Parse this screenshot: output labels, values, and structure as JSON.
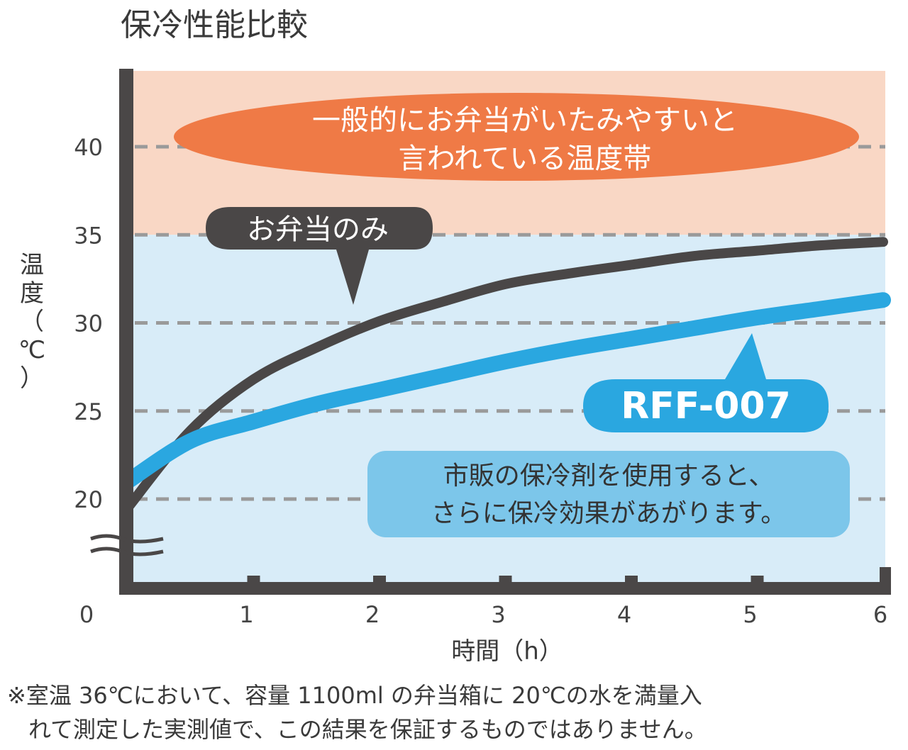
{
  "chart_data": {
    "type": "line",
    "title": "保冷性能比較",
    "xlabel": "時間（h）",
    "ylabel": "温度（℃）",
    "ylabel_chars": [
      "温",
      "度",
      "（",
      "℃",
      "）"
    ],
    "x_origin_label": "0",
    "x_ticks": [
      1,
      2,
      3,
      4,
      5,
      6
    ],
    "y_ticks": [
      20,
      25,
      30,
      35,
      40
    ],
    "xlim": [
      0,
      6
    ],
    "ylim": [
      16.5,
      44
    ],
    "grid": "dashed horizontal at y ticks",
    "danger_zone": {
      "from": 35,
      "to": 44,
      "color": "#f9d7c5",
      "label_lines": [
        "一般的にお弁当がいたみやすいと",
        "言われている温度帯"
      ]
    },
    "safe_zone": {
      "from": 16.5,
      "to": 35,
      "color": "#d8ecf8"
    },
    "series": [
      {
        "name": "お弁当のみ",
        "color": "#4a4747",
        "x": [
          0,
          0.5,
          1,
          1.5,
          2,
          2.5,
          3,
          3.5,
          4,
          4.5,
          5,
          5.5,
          6
        ],
        "y": [
          19.5,
          23.9,
          26.8,
          28.6,
          30.1,
          31.2,
          32.2,
          32.8,
          33.3,
          33.8,
          34.1,
          34.4,
          34.6
        ]
      },
      {
        "name": "RFF-007",
        "color": "#2aa7e0",
        "x": [
          0,
          0.5,
          1,
          1.5,
          2,
          2.5,
          3,
          3.5,
          4,
          4.5,
          5,
          5.5,
          6
        ],
        "y": [
          21.0,
          23.3,
          24.4,
          25.4,
          26.2,
          27.0,
          27.8,
          28.5,
          29.1,
          29.7,
          30.3,
          30.8,
          31.3
        ]
      }
    ],
    "annotation": {
      "lines": [
        "市販の保冷剤を使用すると、",
        "さらに保冷効果があがります。"
      ]
    },
    "footnote": [
      "※室温 36℃において、容量 1100ml の弁当箱に 20℃の水を満量入",
      "れて測定した実測値で、この結果を保証するものではありません。"
    ]
  }
}
